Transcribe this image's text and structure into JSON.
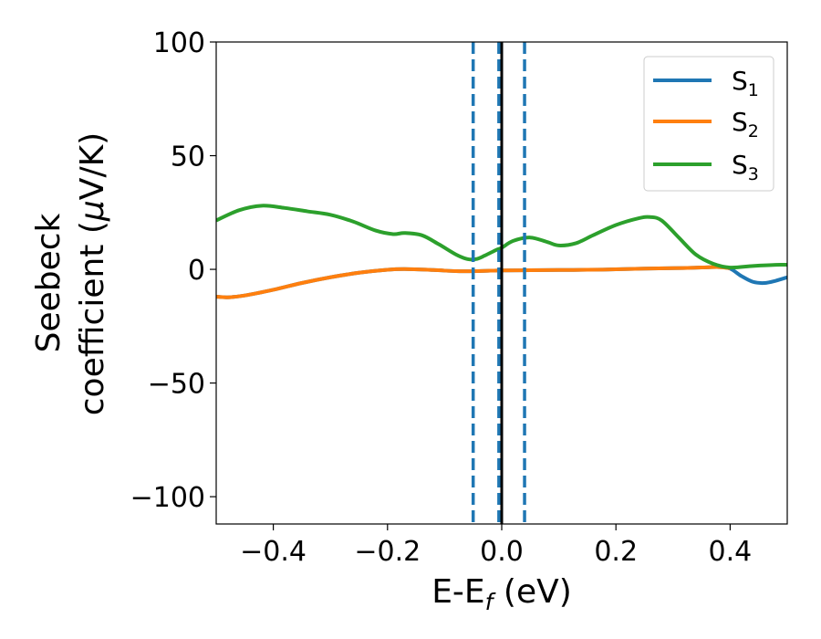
{
  "chart_data": {
    "type": "line",
    "xlabel": "E-E",
    "xlabel_sub": "f",
    "xlabel_unit": " (eV)",
    "ylabel_line1": "Seebeck",
    "ylabel_line2": "coefficient  (",
    "ylabel_mu": "μ",
    "ylabel_unit": "V/K)",
    "xlim": [
      -0.5,
      0.5
    ],
    "ylim": [
      -112,
      100
    ],
    "xticks": [
      -0.4,
      -0.2,
      0.0,
      0.2,
      0.4
    ],
    "xtick_labels": [
      "−0.4",
      "−0.2",
      "0.0",
      "0.2",
      "0.4"
    ],
    "yticks": [
      -100,
      -50,
      0,
      50,
      100
    ],
    "ytick_labels": [
      "−100",
      "−50",
      "0",
      "50",
      "100"
    ],
    "grid": false,
    "legend_position": "upper-right",
    "series": [
      {
        "name": "S",
        "name_sub": "1",
        "color": "#1f77b4",
        "x": [
          -0.5,
          -0.48,
          -0.45,
          -0.4,
          -0.35,
          -0.3,
          -0.25,
          -0.2,
          -0.17,
          -0.12,
          -0.08,
          -0.05,
          -0.02,
          0.0,
          0.05,
          0.1,
          0.15,
          0.2,
          0.25,
          0.3,
          0.35,
          0.38,
          0.4,
          0.42,
          0.44,
          0.46,
          0.48,
          0.5
        ],
        "y": [
          -12,
          -12.3,
          -11.5,
          -9,
          -6,
          -3.5,
          -1.5,
          -0.2,
          0.1,
          -0.3,
          -0.8,
          -0.8,
          -0.6,
          -0.5,
          -0.4,
          -0.3,
          -0.2,
          0.0,
          0.3,
          0.5,
          0.8,
          1.0,
          0.3,
          -3,
          -5.5,
          -6,
          -5,
          -3.5
        ]
      },
      {
        "name": "S",
        "name_sub": "2",
        "color": "#ff7f0e",
        "x": [
          -0.5,
          -0.48,
          -0.45,
          -0.4,
          -0.35,
          -0.3,
          -0.25,
          -0.2,
          -0.17,
          -0.12,
          -0.08,
          -0.05,
          -0.02,
          0.0,
          0.05,
          0.1,
          0.15,
          0.2,
          0.25,
          0.3,
          0.35,
          0.38,
          0.4
        ],
        "y": [
          -12,
          -12.3,
          -11.5,
          -9,
          -6,
          -3.5,
          -1.5,
          -0.2,
          0.1,
          -0.3,
          -0.8,
          -0.8,
          -0.6,
          -0.5,
          -0.4,
          -0.3,
          -0.2,
          0.0,
          0.3,
          0.5,
          0.8,
          1.0,
          0.5
        ]
      },
      {
        "name": "S",
        "name_sub": "3",
        "color": "#2ca02c",
        "x": [
          -0.5,
          -0.46,
          -0.42,
          -0.38,
          -0.34,
          -0.3,
          -0.26,
          -0.22,
          -0.19,
          -0.17,
          -0.14,
          -0.11,
          -0.08,
          -0.06,
          -0.045,
          -0.03,
          -0.01,
          0.0,
          0.02,
          0.05,
          0.08,
          0.1,
          0.13,
          0.16,
          0.2,
          0.24,
          0.26,
          0.28,
          0.31,
          0.34,
          0.37,
          0.4,
          0.44,
          0.48,
          0.5
        ],
        "y": [
          21.5,
          26,
          28,
          27,
          25.5,
          24,
          21,
          17,
          15.5,
          16,
          15,
          11,
          6.5,
          4.5,
          4.5,
          6,
          8.5,
          9.5,
          12.5,
          14,
          12,
          10.5,
          11.5,
          15,
          19.5,
          22.5,
          23,
          21.5,
          14,
          6.5,
          2.5,
          0.8,
          1.5,
          2.0,
          2.0
        ]
      }
    ],
    "vlines": [
      {
        "x": -0.05,
        "style": "dashed",
        "color": "#1f77b4"
      },
      {
        "x": -0.005,
        "style": "dashed",
        "color": "#1f77b4"
      },
      {
        "x": 0.04,
        "style": "dashed",
        "color": "#1f77b4"
      },
      {
        "x": 0.0,
        "style": "solid",
        "color": "#000000"
      }
    ]
  }
}
